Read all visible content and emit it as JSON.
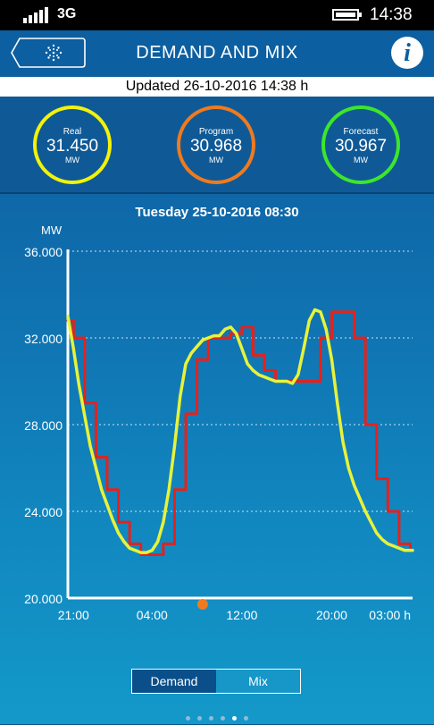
{
  "status_bar": {
    "network": "3G",
    "time": "14:38"
  },
  "header": {
    "title": "DEMAND AND MIX",
    "info_label": "i"
  },
  "updated": "Updated 26-10-2016 14:38 h",
  "gauges": [
    {
      "label": "Real",
      "value": "31.450",
      "unit": "MW",
      "color": "#f2f20a"
    },
    {
      "label": "Program",
      "value": "30.968",
      "unit": "MW",
      "color": "#f07a1e"
    },
    {
      "label": "Forecast",
      "value": "30.967",
      "unit": "MW",
      "color": "#3ee62a"
    }
  ],
  "chart_data": {
    "type": "line",
    "title": "Tuesday 25-10-2016 08:30",
    "ylabel": "MW",
    "xlabel": "",
    "ylim": [
      20000,
      36000
    ],
    "xlim": [
      20.5,
      51.2
    ],
    "y_ticks": [
      "20.000",
      "24.000",
      "28.000",
      "32.000",
      "36.000"
    ],
    "y_tick_values": [
      20000,
      24000,
      28000,
      32000,
      36000
    ],
    "x_ticks": [
      "21:00",
      "04:00",
      "12:00",
      "20:00",
      "03:00 h"
    ],
    "x_tick_values": [
      21,
      28,
      36,
      44,
      51
    ],
    "grid": true,
    "marker": {
      "x": 32.5,
      "color": "#f07a1e"
    },
    "series": [
      {
        "color": "#e8201a",
        "step": true,
        "x": [
          20.5,
          21,
          22,
          23,
          24,
          25,
          26,
          27,
          28,
          29,
          30,
          31,
          32,
          33,
          34,
          35,
          36,
          37,
          38,
          39,
          40,
          41,
          42,
          43,
          44,
          45,
          46,
          47,
          48,
          49,
          50,
          51
        ],
        "values": [
          32800,
          32000,
          29000,
          26500,
          25000,
          23500,
          22500,
          22000,
          22000,
          22500,
          25000,
          28500,
          31000,
          32000,
          32000,
          32200,
          32500,
          31200,
          30500,
          30000,
          30000,
          30000,
          30000,
          32000,
          33200,
          33200,
          32000,
          28000,
          25500,
          24000,
          22500,
          22300
        ]
      },
      {
        "color": "#e8f23a",
        "step": false,
        "x": [
          20.5,
          21,
          21.5,
          22,
          22.5,
          23,
          23.5,
          24,
          24.5,
          25,
          25.5,
          26,
          26.5,
          27,
          27.5,
          28,
          28.5,
          29,
          29.5,
          30,
          30.5,
          31,
          31.5,
          32,
          32.5,
          33,
          33.5,
          34,
          34.5,
          35,
          35.5,
          36,
          36.5,
          37,
          37.5,
          38,
          38.5,
          39,
          39.5,
          40,
          40.5,
          41,
          41.5,
          42,
          42.5,
          43,
          43.5,
          44,
          44.5,
          45,
          45.5,
          46,
          46.5,
          47,
          47.5,
          48,
          48.5,
          49,
          49.5,
          50,
          50.5,
          51,
          51.2
        ],
        "values": [
          33000,
          31500,
          29800,
          28400,
          27000,
          26000,
          25000,
          24300,
          23600,
          23000,
          22600,
          22300,
          22200,
          22100,
          22100,
          22200,
          22600,
          23500,
          25000,
          27000,
          29300,
          30800,
          31300,
          31600,
          31900,
          32000,
          32100,
          32100,
          32400,
          32500,
          32200,
          31500,
          30800,
          30500,
          30300,
          30200,
          30100,
          30000,
          30000,
          30000,
          29900,
          30300,
          31500,
          32800,
          33300,
          33200,
          32400,
          31000,
          29000,
          27200,
          26000,
          25200,
          24600,
          24000,
          23500,
          23000,
          22700,
          22500,
          22400,
          22300,
          22200,
          22200,
          22200
        ]
      }
    ]
  },
  "tabs": [
    {
      "label": "Demand",
      "active": true
    },
    {
      "label": "Mix",
      "active": false
    }
  ],
  "page_dots": {
    "count": 6,
    "active": 4
  }
}
